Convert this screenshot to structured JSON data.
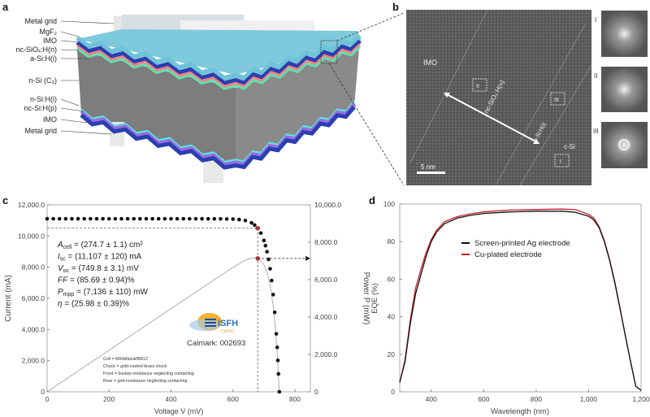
{
  "panel_labels": {
    "a": "a",
    "b": "b",
    "c": "c",
    "d": "d"
  },
  "panel_a": {
    "layer_labels": [
      "Metal grid",
      "MgF₂",
      "IMO",
      "nc-SiOₓ:H(n)",
      "a-Si:H(i)",
      "n-Si (C₂)",
      "n-Si:H(i)",
      "nc-Si:H(p)",
      "IMO",
      "Metal grid"
    ],
    "colors": {
      "body": "#7a7a7a",
      "mgf2": "#6fc3d8",
      "imo": "#2a3fb0",
      "nc_sio": "#ff7f7f",
      "a_si": "#5fe0b0",
      "bottom_purple": "#9b6be0",
      "bottom_cyan": "#58e8e0"
    }
  },
  "panel_b": {
    "region_labels": [
      "IMO",
      "nc-SiOₓ:H(n)",
      "a-Si:H(i)",
      "c-Si"
    ],
    "box_labels": [
      "II",
      "III",
      "I"
    ],
    "scale_bar": "5 nm",
    "fft_labels": [
      "I",
      "II",
      "III"
    ]
  },
  "chart_data": [
    {
      "type": "scatter",
      "panel": "c",
      "xlabel": "Voltage V (mV)",
      "ylabel": "Current (mA)",
      "y2label": "Power P (mW)",
      "xlim": [
        0,
        850
      ],
      "ylim": [
        0,
        12000
      ],
      "y2lim": [
        0,
        10000
      ],
      "xticks": [
        "0",
        "200",
        "400",
        "600",
        "800"
      ],
      "yticks": [
        "0",
        "2,000.0",
        "4,000.0",
        "6,000.0",
        "8,000.0",
        "10,000.0",
        "12,000.0"
      ],
      "y2ticks": [
        "0",
        "2,000.0",
        "4,000.0",
        "6,000.0",
        "8,000.0",
        "10,000.0"
      ],
      "grid": false,
      "iv_points": [
        [
          0,
          11107
        ],
        [
          20,
          11107
        ],
        [
          40,
          11107
        ],
        [
          60,
          11107
        ],
        [
          80,
          11107
        ],
        [
          100,
          11107
        ],
        [
          120,
          11107
        ],
        [
          140,
          11107
        ],
        [
          160,
          11107
        ],
        [
          180,
          11107
        ],
        [
          200,
          11107
        ],
        [
          220,
          11107
        ],
        [
          240,
          11107
        ],
        [
          260,
          11107
        ],
        [
          280,
          11107
        ],
        [
          300,
          11107
        ],
        [
          320,
          11107
        ],
        [
          340,
          11107
        ],
        [
          360,
          11107
        ],
        [
          380,
          11107
        ],
        [
          400,
          11107
        ],
        [
          420,
          11106
        ],
        [
          440,
          11106
        ],
        [
          460,
          11105
        ],
        [
          480,
          11105
        ],
        [
          500,
          11104
        ],
        [
          520,
          11103
        ],
        [
          540,
          11101
        ],
        [
          560,
          11098
        ],
        [
          580,
          11093
        ],
        [
          600,
          11085
        ],
        [
          620,
          11057
        ],
        [
          640,
          10993
        ],
        [
          660,
          10844
        ],
        [
          670,
          10700
        ],
        [
          680,
          10500
        ],
        [
          690,
          10187
        ],
        [
          700,
          9712
        ],
        [
          705,
          9380
        ],
        [
          710,
          8991
        ],
        [
          715,
          8500
        ],
        [
          720,
          7898
        ],
        [
          725,
          7140
        ],
        [
          730,
          6240
        ],
        [
          735,
          5100
        ],
        [
          740,
          3723
        ],
        [
          743,
          2850
        ],
        [
          745,
          2014
        ],
        [
          747,
          1150
        ],
        [
          749.8,
          0
        ]
      ],
      "mpp": {
        "voltage": 680,
        "current": 10500,
        "power": 7136
      },
      "annotations": [
        {
          "symbol": "A",
          "sub": "cell",
          "text": " = (274.7 ± 1.1) cm²"
        },
        {
          "symbol": "I",
          "sub": "sc",
          "text": " = (11,107 ± 120) mA"
        },
        {
          "symbol": "V",
          "sub": "oc",
          "text": " = (749.8 ± 3.1) mV"
        },
        {
          "symbol": "FF",
          "sub": "",
          "text": " = (85.69 ± 0.94)%"
        },
        {
          "symbol": "P",
          "sub": "mpp",
          "text": " = (7,136 ± 110) mW"
        },
        {
          "symbol": "η",
          "sub": "",
          "text": " = (25.98 ± 0.39)%"
        }
      ],
      "logo_text": "ISFH",
      "logo_sub": "CalTeC",
      "calmark": "Calmark: 002693",
      "notes": [
        "Cell = M6/bifacial/BB12",
        "Chuck = gold-coated brass chuck",
        "Front = busbar-resistance neglecting contacting",
        "Rear = grid-resistance neglecting contacting"
      ]
    },
    {
      "type": "line",
      "panel": "d",
      "xlabel": "Wavelength (nm)",
      "ylabel": "EQE (%)",
      "xlim": [
        280,
        1200
      ],
      "ylim": [
        0,
        100
      ],
      "xticks": [
        "400",
        "600",
        "800",
        "1,000",
        "1,200"
      ],
      "yticks": [
        "0",
        "20",
        "40",
        "60",
        "80",
        "100"
      ],
      "grid": false,
      "legend_position": "upper-center",
      "series": [
        {
          "name": "Screen-printed Ag electrode",
          "color": "#111111",
          "points": [
            [
              280,
              5
            ],
            [
              300,
              16
            ],
            [
              320,
              36
            ],
            [
              340,
              52
            ],
            [
              360,
              62
            ],
            [
              380,
              72
            ],
            [
              400,
              80
            ],
            [
              420,
              85
            ],
            [
              450,
              89.5
            ],
            [
              500,
              92.5
            ],
            [
              550,
              94
            ],
            [
              600,
              95
            ],
            [
              700,
              95.8
            ],
            [
              800,
              96.2
            ],
            [
              900,
              96.2
            ],
            [
              950,
              95.6
            ],
            [
              1000,
              93.5
            ],
            [
              1020,
              91.5
            ],
            [
              1040,
              87.5
            ],
            [
              1060,
              80
            ],
            [
              1080,
              70
            ],
            [
              1100,
              58
            ],
            [
              1120,
              44
            ],
            [
              1140,
              30
            ],
            [
              1160,
              16
            ],
            [
              1180,
              3
            ],
            [
              1200,
              0.8
            ]
          ]
        },
        {
          "name": "Cu-plated electrode",
          "color": "#c8202a",
          "points": [
            [
              280,
              5
            ],
            [
              300,
              17
            ],
            [
              320,
              38
            ],
            [
              340,
              55
            ],
            [
              360,
              65
            ],
            [
              380,
              74
            ],
            [
              400,
              81
            ],
            [
              420,
              86
            ],
            [
              450,
              90.5
            ],
            [
              500,
              93.3
            ],
            [
              550,
              94.8
            ],
            [
              600,
              95.8
            ],
            [
              700,
              96.8
            ],
            [
              800,
              97.1
            ],
            [
              900,
              97.3
            ],
            [
              950,
              97
            ],
            [
              1000,
              94.5
            ],
            [
              1020,
              92.5
            ],
            [
              1040,
              88
            ],
            [
              1060,
              80.5
            ],
            [
              1080,
              70.5
            ],
            [
              1100,
              58.5
            ],
            [
              1120,
              44.5
            ],
            [
              1140,
              30
            ],
            [
              1160,
              16
            ],
            [
              1180,
              3
            ],
            [
              1200,
              0.8
            ]
          ]
        }
      ]
    }
  ]
}
